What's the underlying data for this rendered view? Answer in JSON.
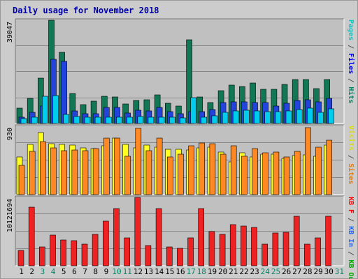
{
  "chart_data": {
    "type": "bar",
    "title": "Daily usage for November 2018",
    "days": [
      "1",
      "2",
      "3",
      "4",
      "5",
      "6",
      "7",
      "8",
      "9",
      "10",
      "11",
      "12",
      "13",
      "14",
      "15",
      "16",
      "17",
      "18",
      "19",
      "20",
      "21",
      "22",
      "23",
      "24",
      "25",
      "26",
      "27",
      "28",
      "29",
      "30",
      "31"
    ],
    "weekend_days": [
      "3",
      "4",
      "10",
      "11",
      "17",
      "18",
      "24",
      "25",
      "31"
    ],
    "panels": [
      {
        "id": "hits",
        "ymax_label": "39047",
        "ymax": 39047,
        "right_label_parts": [
          {
            "text": "Pages",
            "color": "#00cccc"
          },
          {
            "text": " / ",
            "color": "#555555"
          },
          {
            "text": "Files",
            "color": "#0000ff"
          },
          {
            "text": " / ",
            "color": "#555555"
          },
          {
            "text": "Hits",
            "color": "#008866"
          }
        ],
        "series": [
          {
            "name": "Hits",
            "color": "#117755",
            "values": [
              5900,
              9400,
              17100,
              39047,
              26900,
              11300,
              7200,
              8400,
              10400,
              9900,
              7400,
              8700,
              9000,
              10800,
              7600,
              6600,
              31600,
              10100,
              7800,
              12500,
              14600,
              14000,
              15300,
              13000,
              12900,
              14900,
              16500,
              16500,
              13300,
              16700,
              0
            ]
          },
          {
            "name": "Files",
            "color": "#2244dd",
            "values": [
              2500,
              4300,
              6500,
              24400,
              23500,
              4800,
              3800,
              3600,
              6000,
              6200,
              4000,
              4900,
              4800,
              6000,
              4600,
              3600,
              4600,
              4500,
              5300,
              7800,
              8100,
              8200,
              8000,
              7900,
              6700,
              7700,
              8600,
              9100,
              8100,
              9500,
              0
            ]
          },
          {
            "name": "Pages",
            "color": "#00ccee",
            "values": [
              1800,
              2500,
              10300,
              10500,
              3300,
              2600,
              2300,
              2400,
              2500,
              2500,
              2300,
              2600,
              2400,
              2500,
              2300,
              2100,
              9800,
              2300,
              2800,
              4200,
              4800,
              4900,
              4700,
              4500,
              4600,
              4800,
              5200,
              5900,
              4100,
              5600,
              0
            ]
          }
        ]
      },
      {
        "id": "visits",
        "ymax_label": "930",
        "ymax": 930,
        "right_label_parts": [
          {
            "text": "Visits",
            "color": "#dddd00"
          },
          {
            "text": " / ",
            "color": "#555555"
          },
          {
            "text": "Sites",
            "color": "#ee7700"
          }
        ],
        "series": [
          {
            "name": "Visits",
            "color": "#ffff22",
            "values": [
              510,
              680,
              840,
              690,
              680,
              670,
              640,
              630,
              660,
              770,
              680,
              640,
              670,
              650,
              620,
              620,
              610,
              640,
              650,
              580,
              450,
              570,
              510,
              550,
              550,
              490,
              530,
              540,
              520,
              670,
              0
            ]
          },
          {
            "name": "Sites",
            "color": "#ff8822",
            "values": [
              400,
              590,
              720,
              640,
              600,
              610,
              600,
              630,
              770,
              770,
              520,
              900,
              600,
              770,
              510,
              550,
              660,
              700,
              690,
              550,
              660,
              520,
              630,
              570,
              580,
              510,
              590,
              910,
              650,
              740,
              0
            ]
          }
        ]
      },
      {
        "id": "kbytes",
        "ymax_label": "10121694",
        "ymax": 10121694,
        "right_label_parts": [
          {
            "text": "KB F",
            "color": "#ff0000"
          },
          {
            "text": " / ",
            "color": "#555555"
          },
          {
            "text": "KB In",
            "color": "#2266ff"
          },
          {
            "text": " / ",
            "color": "#555555"
          },
          {
            "text": "KB Out",
            "color": "#00aa00"
          }
        ],
        "series": [
          {
            "name": "KB F",
            "color": "#ee2222",
            "values": [
              2280000,
              8710000,
              2750000,
              4500000,
              3810000,
              3680000,
              3230000,
              4640000,
              6640000,
              8500000,
              4130000,
              10121694,
              3000000,
              8500000,
              2750000,
              2620000,
              4150000,
              8470000,
              5070000,
              4610000,
              6050000,
              5900000,
              5720000,
              3220000,
              4810000,
              4950000,
              7320000,
              3250000,
              4140000,
              7330000,
              0
            ]
          }
        ]
      }
    ]
  }
}
